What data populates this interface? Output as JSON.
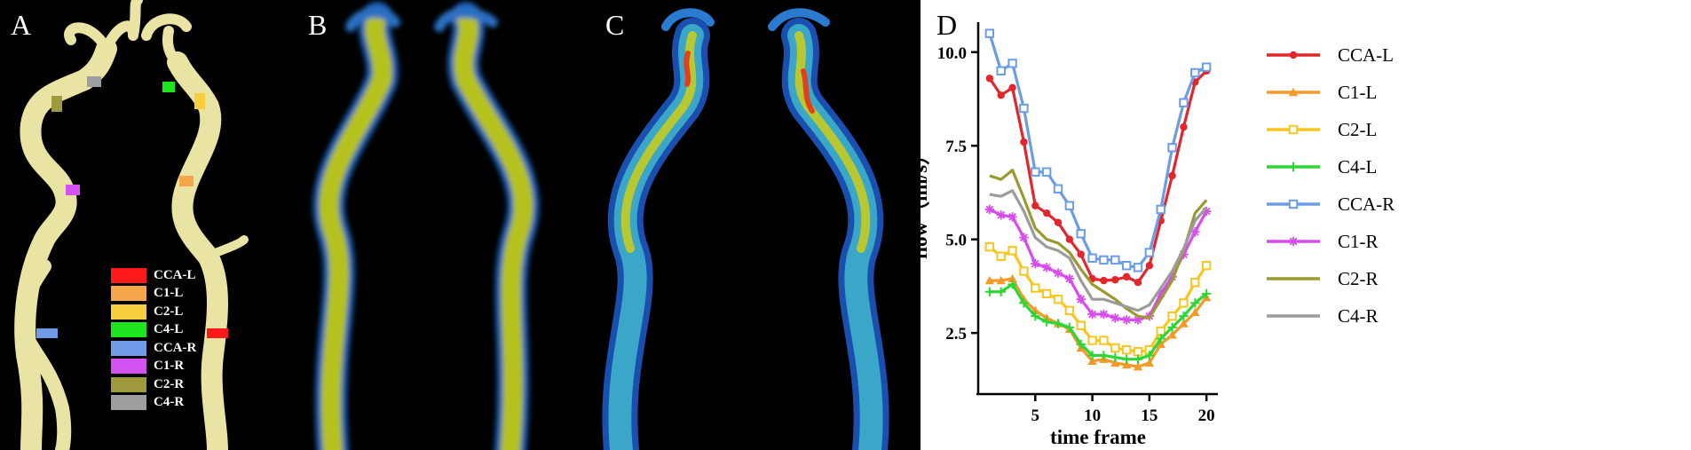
{
  "panels": {
    "a": {
      "letter": "A"
    },
    "b": {
      "letter": "B"
    },
    "c": {
      "letter": "C"
    },
    "d": {
      "letter": "D"
    }
  },
  "legend_a": [
    {
      "label": "CCA-L",
      "color": "#ff1a1a"
    },
    {
      "label": "C1-L",
      "color": "#f5a54a"
    },
    {
      "label": "C2-L",
      "color": "#f7cf3f"
    },
    {
      "label": "C4-L",
      "color": "#1ee61e"
    },
    {
      "label": "CCA-R",
      "color": "#6f9be8"
    },
    {
      "label": "C1-R",
      "color": "#d552f2"
    },
    {
      "label": "C2-R",
      "color": "#9e9a3c"
    },
    {
      "label": "C4-R",
      "color": "#9e9e9e"
    }
  ],
  "chart_data": {
    "type": "line",
    "xlabel": "time frame",
    "ylabel": "flow（ml/s）",
    "xlim": [
      0,
      21
    ],
    "ylim": [
      1.2,
      10.8
    ],
    "xticks": [
      5,
      10,
      15,
      20
    ],
    "yticks": [
      2.5,
      5.0,
      7.5,
      10.0
    ],
    "ytick_labels": [
      "2.5",
      "5.0",
      "7.5",
      "10.0"
    ],
    "x": [
      1,
      2,
      3,
      4,
      5,
      6,
      7,
      8,
      9,
      10,
      11,
      12,
      13,
      14,
      15,
      16,
      17,
      18,
      19,
      20
    ],
    "series": [
      {
        "name": "CCA-L",
        "color": "#e3262b",
        "marker": "circle",
        "values": [
          9.3,
          8.85,
          9.05,
          7.6,
          5.9,
          5.7,
          5.45,
          5.0,
          4.6,
          3.95,
          3.9,
          3.92,
          4.0,
          3.85,
          4.3,
          5.5,
          6.7,
          8.0,
          9.2,
          9.5
        ]
      },
      {
        "name": "C1-L",
        "color": "#f39a28",
        "marker": "triangle",
        "values": [
          3.9,
          3.9,
          3.95,
          3.4,
          3.1,
          2.9,
          2.75,
          2.6,
          2.1,
          1.75,
          1.8,
          1.7,
          1.65,
          1.6,
          1.7,
          2.2,
          2.45,
          2.75,
          3.05,
          3.45
        ]
      },
      {
        "name": "C2-L",
        "color": "#f8c61e",
        "marker": "square",
        "values": [
          4.8,
          4.55,
          4.7,
          4.15,
          3.7,
          3.55,
          3.4,
          3.1,
          2.7,
          2.3,
          2.3,
          2.1,
          2.05,
          2.0,
          2.05,
          2.55,
          2.95,
          3.3,
          3.85,
          4.3
        ]
      },
      {
        "name": "C4-L",
        "color": "#2ed635",
        "marker": "plus",
        "values": [
          3.6,
          3.6,
          3.8,
          3.3,
          2.95,
          2.8,
          2.75,
          2.65,
          2.2,
          1.9,
          1.9,
          1.85,
          1.8,
          1.8,
          1.9,
          2.35,
          2.65,
          2.95,
          3.3,
          3.55
        ]
      },
      {
        "name": "CCA-R",
        "color": "#6c9ce6",
        "marker": "square",
        "values": [
          10.5,
          9.5,
          9.7,
          8.5,
          6.8,
          6.8,
          6.35,
          5.9,
          5.15,
          4.5,
          4.45,
          4.45,
          4.3,
          4.25,
          4.65,
          5.8,
          7.45,
          8.65,
          9.45,
          9.6
        ]
      },
      {
        "name": "C1-R",
        "color": "#d74cec",
        "marker": "asterisk",
        "values": [
          5.8,
          5.65,
          5.6,
          5.05,
          4.35,
          4.25,
          4.1,
          3.95,
          3.4,
          3.0,
          3.0,
          2.9,
          2.85,
          2.85,
          2.95,
          3.55,
          4.0,
          4.6,
          5.2,
          5.75
        ]
      },
      {
        "name": "C2-R",
        "color": "#9a9a30",
        "marker": "none",
        "values": [
          6.7,
          6.6,
          6.85,
          6.1,
          5.3,
          5.0,
          4.9,
          4.65,
          4.2,
          3.8,
          3.6,
          3.4,
          3.15,
          2.95,
          2.9,
          3.4,
          3.9,
          4.7,
          5.7,
          6.05
        ]
      },
      {
        "name": "C4-R",
        "color": "#9c9c9c",
        "marker": "none",
        "values": [
          6.2,
          6.15,
          6.3,
          5.75,
          5.05,
          4.8,
          4.7,
          4.5,
          3.9,
          3.4,
          3.4,
          3.3,
          3.2,
          3.1,
          3.25,
          3.7,
          4.15,
          4.75,
          5.5,
          5.85
        ]
      }
    ]
  }
}
